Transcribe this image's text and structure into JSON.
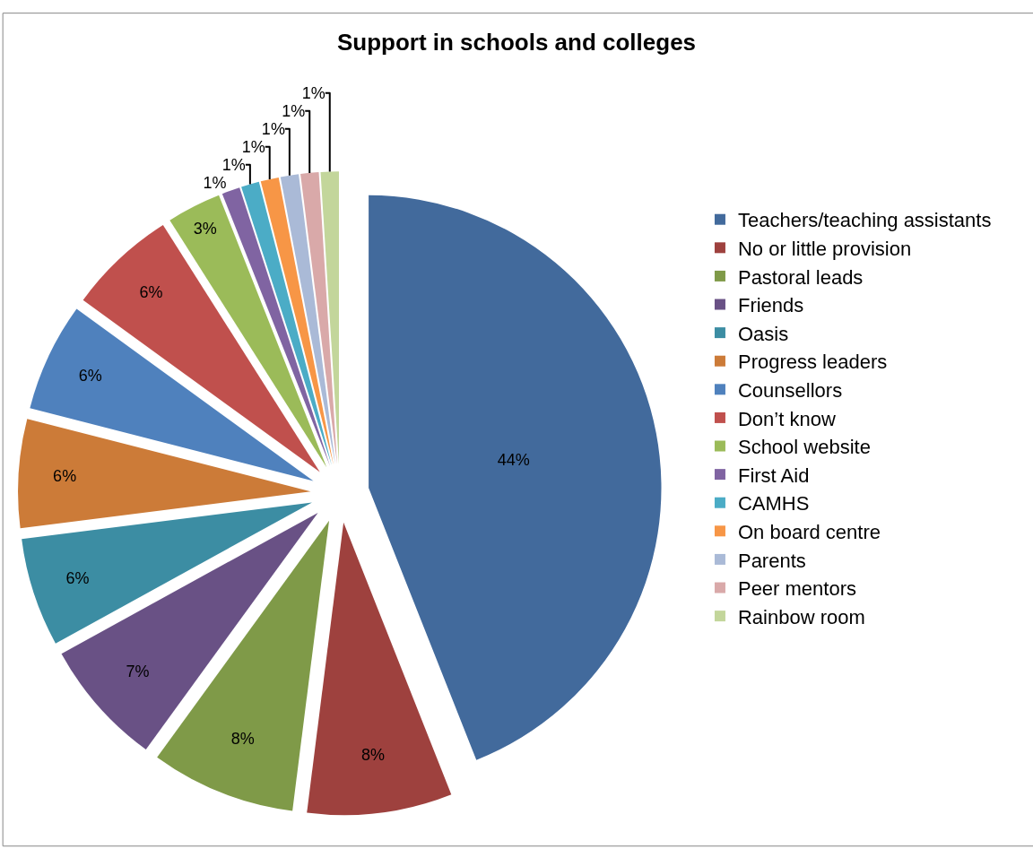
{
  "chart_data": {
    "type": "pie",
    "title": "Support in schools and colleges",
    "categories": [
      "Teachers/teaching assistants",
      "No or little provision",
      "Pastoral leads",
      "Friends",
      "Oasis",
      "Progress leaders",
      "Counsellors",
      "Don’t know",
      "School website",
      "First Aid",
      "CAMHS",
      "On board centre",
      "Parents",
      "Peer mentors",
      "Rainbow room"
    ],
    "values": [
      44,
      8,
      8,
      7,
      6,
      6,
      6,
      6,
      3,
      1,
      1,
      1,
      1,
      1,
      1
    ],
    "value_labels": [
      "44%",
      "8%",
      "8%",
      "7%",
      "6%",
      "6%",
      "6%",
      "6%",
      "3%",
      "1%",
      "1%",
      "1%",
      "1%",
      "1%",
      "1%"
    ],
    "colors": [
      "#426a9c",
      "#9e413e",
      "#7f9a48",
      "#695185",
      "#3c8da3",
      "#cc7b38",
      "#4f81bd",
      "#c0504d",
      "#9bbb59",
      "#8064a2",
      "#4bacc6",
      "#f79646",
      "#aabad7",
      "#d9a9a9",
      "#c3d69b"
    ],
    "legend": "right"
  }
}
